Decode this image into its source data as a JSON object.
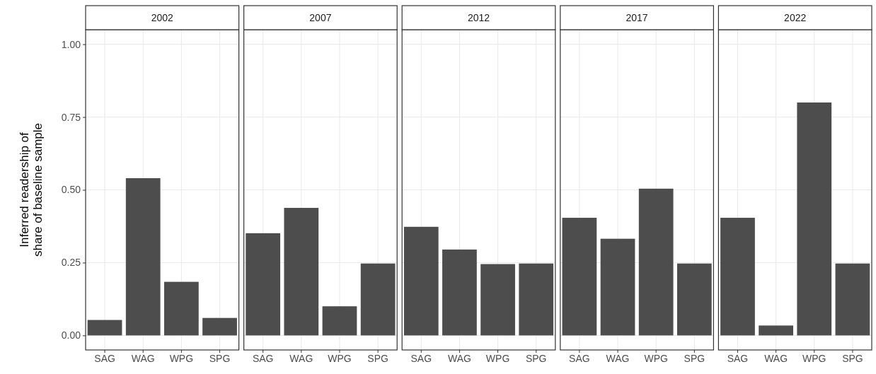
{
  "chart_data": [
    {
      "type": "bar",
      "title": "2002",
      "ylabel": "Inferred readership of\nshare of baseline sample",
      "categories": [
        "SAG",
        "WAG",
        "WPG",
        "SPG"
      ],
      "values": [
        0.053,
        0.54,
        0.184,
        0.06
      ],
      "color": "#4d4d4d",
      "ylim": [
        -0.05,
        1.05
      ],
      "yticks": [
        {
          "value": 0,
          "label": "0.00"
        },
        {
          "value": 0.25,
          "label": "0.25"
        },
        {
          "value": 0.5,
          "label": "0.50"
        },
        {
          "value": 0.75,
          "label": "0.75"
        },
        {
          "value": 1,
          "label": "1.00"
        }
      ],
      "grid": true
    },
    {
      "type": "bar",
      "title": "2007",
      "categories": [
        "SAG",
        "WAG",
        "WPG",
        "SPG"
      ],
      "values": [
        0.351,
        0.438,
        0.1,
        0.247
      ],
      "color": "#4d4d4d",
      "ylim": [
        -0.05,
        1.05
      ],
      "yticks": [
        {
          "value": 0,
          "label": null
        },
        {
          "value": 0.25,
          "label": null
        },
        {
          "value": 0.5,
          "label": null
        },
        {
          "value": 0.75,
          "label": null
        },
        {
          "value": 1,
          "label": null
        }
      ],
      "grid": true,
      "tick_labels": "x"
    },
    {
      "type": "bar",
      "title": "2012",
      "categories": [
        "SAG",
        "WAG",
        "WPG",
        "SPG"
      ],
      "values": [
        0.373,
        0.295,
        0.245,
        0.247
      ],
      "color": "#4d4d4d",
      "ylim": [
        -0.05,
        1.05
      ],
      "yticks": [
        {
          "value": 0,
          "label": null
        },
        {
          "value": 0.25,
          "label": null
        },
        {
          "value": 0.5,
          "label": null
        },
        {
          "value": 0.75,
          "label": null
        },
        {
          "value": 1,
          "label": null
        }
      ],
      "grid": true,
      "tick_labels": "x"
    },
    {
      "type": "bar",
      "title": "2017",
      "categories": [
        "SAG",
        "WAG",
        "WPG",
        "SPG"
      ],
      "values": [
        0.404,
        0.332,
        0.504,
        0.247
      ],
      "color": "#4d4d4d",
      "ylim": [
        -0.05,
        1.05
      ],
      "yticks": [
        {
          "value": 0,
          "label": null
        },
        {
          "value": 0.25,
          "label": null
        },
        {
          "value": 0.5,
          "label": null
        },
        {
          "value": 0.75,
          "label": null
        },
        {
          "value": 1,
          "label": null
        }
      ],
      "grid": true,
      "tick_labels": "x"
    },
    {
      "type": "bar",
      "title": "2022",
      "categories": [
        "SAG",
        "WAG",
        "WPG",
        "SPG"
      ],
      "values": [
        0.404,
        0.034,
        0.8,
        0.247
      ],
      "color": "#4d4d4d",
      "ylim": [
        -0.05,
        1.05
      ],
      "yticks": [
        {
          "value": 0,
          "label": null
        },
        {
          "value": 0.25,
          "label": null
        },
        {
          "value": 0.5,
          "label": null
        },
        {
          "value": 0.75,
          "label": null
        },
        {
          "value": 1,
          "label": null
        }
      ],
      "grid": true,
      "tick_labels": "x"
    }
  ]
}
